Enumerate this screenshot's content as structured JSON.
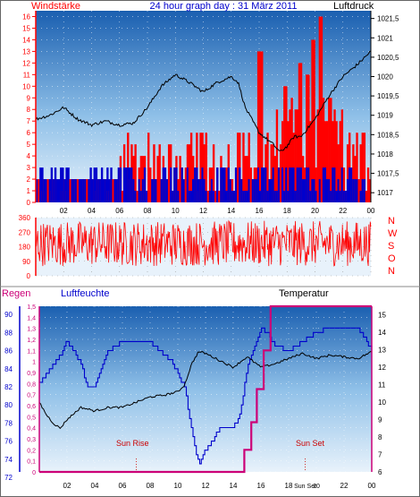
{
  "chart_data": [
    {
      "type": "line",
      "title": "24 hour graph day : 31 März 2011",
      "left_axis_label": "Windstärke",
      "right_axis_label": "Luftdruck",
      "left_ticks": [
        "0",
        "1",
        "2",
        "3",
        "4",
        "5",
        "6",
        "7",
        "8",
        "9",
        "10",
        "11",
        "12",
        "13",
        "14",
        "15",
        "16"
      ],
      "right_ticks": [
        "1017",
        "1017,5",
        "1018",
        "1018,5",
        "1019",
        "1019,5",
        "1020",
        "1020,5",
        "1021",
        "1021,5"
      ],
      "x_ticks": [
        "02",
        "04",
        "06",
        "08",
        "10",
        "12",
        "14",
        "16",
        "18",
        "20",
        "22",
        "00"
      ],
      "xlim": [
        0,
        24
      ],
      "left_ylim": [
        0,
        16.5
      ],
      "right_ylim": [
        1016.75,
        1021.7
      ],
      "series": [
        {
          "kind": "gust",
          "color": "#ff0000",
          "low": 1,
          "high": 6,
          "peak_hours": [
            16.0,
            17.8,
            18.9,
            19.4,
            19.8,
            20.3
          ],
          "peak_values": [
            13,
            10,
            12,
            11,
            14,
            16
          ]
        },
        {
          "kind": "mean",
          "color": "#0000cc",
          "low": 0,
          "high": 3
        },
        {
          "name": "Luftdruck",
          "color": "#000000",
          "x": [
            0,
            1,
            2,
            3,
            4,
            5,
            6,
            7,
            8,
            9,
            10,
            11,
            12,
            13,
            14,
            14.5,
            15,
            16,
            17,
            17.5,
            18,
            18.5,
            19,
            20,
            21,
            22,
            23,
            24
          ],
          "y": [
            1018.9,
            1019.0,
            1019.2,
            1018.9,
            1018.75,
            1018.85,
            1018.75,
            1018.8,
            1019.2,
            1019.75,
            1020.05,
            1019.85,
            1019.6,
            1019.85,
            1020.0,
            1019.85,
            1019.2,
            1018.55,
            1018.25,
            1018.05,
            1018.2,
            1018.45,
            1018.45,
            1018.9,
            1019.5,
            1020.0,
            1020.3,
            1020.65
          ]
        }
      ]
    },
    {
      "type": "line",
      "title": "",
      "y_ticks": [
        "0",
        "90",
        "180",
        "270",
        "360"
      ],
      "right_labels": [
        "N",
        "W",
        "S",
        "O",
        "N"
      ],
      "ylim": [
        0,
        360
      ],
      "xlim": [
        0,
        24
      ],
      "series": [
        {
          "kind": "direction",
          "color": "#ff0000",
          "min": 60,
          "max": 340
        }
      ]
    },
    {
      "type": "line",
      "legend": [
        "Regen",
        "Luftfeuchte",
        "Temperatur"
      ],
      "regen_ticks": [
        "0",
        "0,1",
        "0,2",
        "0,3",
        "0,4",
        "0,5",
        "0,6",
        "0,7",
        "0,8",
        "0,9",
        "1",
        "1,1",
        "1,2",
        "1,3",
        "1,4",
        "1,5"
      ],
      "humidity_ticks": [
        "72",
        "74",
        "76",
        "78",
        "80",
        "82",
        "84",
        "86",
        "88",
        "90"
      ],
      "temp_ticks": [
        "6",
        "7",
        "8",
        "9",
        "10",
        "11",
        "12",
        "13",
        "14",
        "15"
      ],
      "x_ticks": [
        "02",
        "04",
        "06",
        "08",
        "10",
        "12",
        "14",
        "16",
        "18",
        "20",
        "22",
        "00"
      ],
      "annotations": [
        {
          "label": "Sun Rise",
          "hour": 7.0
        },
        {
          "label": "Sun Set",
          "hour": 19.2
        }
      ],
      "xlim": [
        0,
        24
      ],
      "regen_ylim": [
        0,
        1.5
      ],
      "humidity_ylim": [
        72.6,
        90.9
      ],
      "temp_ylim": [
        6,
        15.5
      ],
      "series": [
        {
          "name": "Regen",
          "color": "#cc0077",
          "x": [
            0,
            14.8,
            14.8,
            15.3,
            15.3,
            15.7,
            15.7,
            16.2,
            16.2,
            16.7,
            16.7,
            24
          ],
          "y": [
            0,
            0,
            0.2,
            0.2,
            0.45,
            0.45,
            0.75,
            0.75,
            1.1,
            1.1,
            1.5,
            1.5
          ]
        },
        {
          "name": "Luftfeuchte",
          "color": "#0000cc",
          "x": [
            0,
            0.5,
            1,
            1.5,
            2,
            2.5,
            3,
            3.5,
            4,
            4.5,
            5,
            6,
            7,
            8,
            9,
            9.5,
            10,
            10.5,
            11,
            11.5,
            12,
            12.5,
            13,
            14,
            14.5,
            15,
            15.5,
            16,
            16.5,
            17,
            18,
            19,
            20,
            21,
            22,
            23,
            23.5,
            24
          ],
          "y": [
            82.5,
            83.5,
            84.5,
            85.5,
            87.0,
            86.0,
            84.5,
            82.0,
            82.0,
            84.0,
            86.0,
            87.0,
            87.0,
            87.0,
            85.5,
            85.0,
            83.5,
            82.0,
            77.0,
            73.5,
            75.0,
            76.0,
            77.5,
            77.5,
            79.0,
            84.0,
            86.5,
            88.5,
            88.0,
            86.5,
            86.0,
            87.0,
            88.0,
            88.5,
            88.5,
            88.5,
            87.5,
            86.0
          ]
        },
        {
          "name": "Temperatur",
          "color": "#000000",
          "x": [
            0,
            0.5,
            1,
            1.5,
            2,
            3,
            4,
            5,
            6,
            7,
            8,
            9,
            10,
            10.5,
            11,
            11.5,
            12,
            13,
            14,
            15,
            16,
            17,
            18,
            19,
            20,
            21,
            22,
            23,
            24
          ],
          "y": [
            10.0,
            9.3,
            8.8,
            8.5,
            9.0,
            9.7,
            9.5,
            9.7,
            9.7,
            10.0,
            10.3,
            10.4,
            10.6,
            11.0,
            12.2,
            12.9,
            12.8,
            12.4,
            12.0,
            12.6,
            12.0,
            12.2,
            12.5,
            12.8,
            12.5,
            12.7,
            12.6,
            12.5,
            12.9
          ]
        }
      ]
    }
  ]
}
